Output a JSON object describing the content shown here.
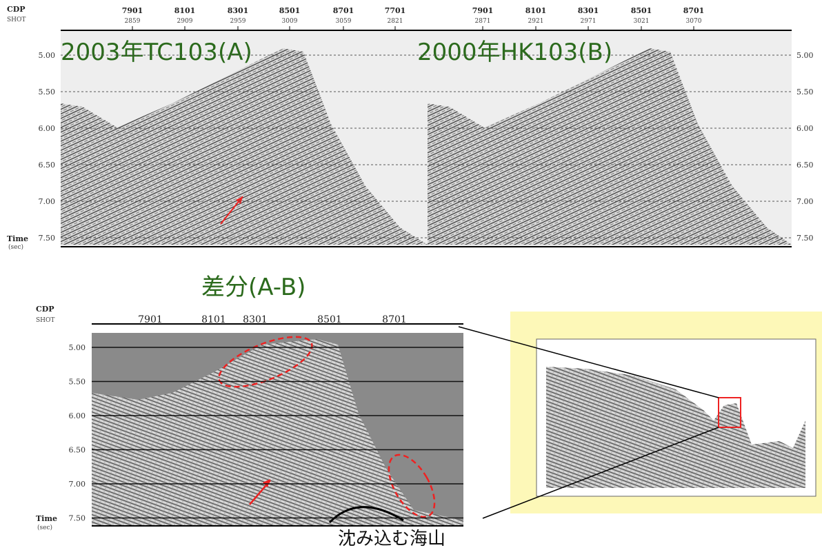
{
  "top_panel": {
    "cdp_label": "CDP",
    "shot_label": "SHOT",
    "cdp": [
      "7901",
      "8101",
      "8301",
      "8501",
      "8701",
      "7701",
      "7901",
      "8101",
      "8301",
      "8501",
      "8701"
    ],
    "shot": [
      "2859",
      "2909",
      "2959",
      "3009",
      "3059",
      "2821",
      "2871",
      "2921",
      "2971",
      "3021",
      "3070"
    ],
    "times": [
      "5.00",
      "5.50",
      "6.00",
      "6.50",
      "7.00",
      "7.50"
    ],
    "time_label": "Time",
    "time_unit": "(sec)",
    "title_a": "2003年TC103(A)",
    "title_b": "2000年HK103(B)"
  },
  "diff_title": "差分(A-B)",
  "bottom_panel": {
    "cdp_label": "CDP",
    "shot_label": "SHOT",
    "cdp": [
      "7901",
      "8101",
      "8301",
      "8501",
      "8701"
    ],
    "times": [
      "5.00",
      "5.50",
      "6.00",
      "6.50",
      "7.00",
      "7.50"
    ],
    "time_label": "Time",
    "time_unit": "(sec)"
  },
  "caption": "沈み込む海山"
}
